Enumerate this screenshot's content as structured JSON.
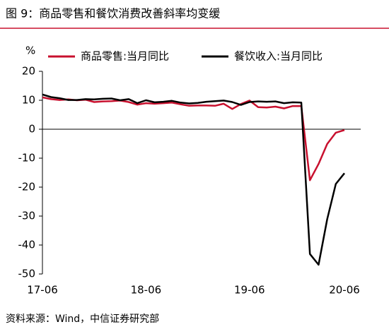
{
  "chart_data": {
    "type": "line",
    "title": "图 9：商品零售和餐饮消费改善斜率均变缓",
    "y_label": "%",
    "source": "资料来源：Wind，中信证券研究部",
    "categories": [
      "17-06",
      null,
      null,
      null,
      null,
      null,
      null,
      null,
      null,
      null,
      null,
      null,
      "18-06",
      null,
      null,
      null,
      null,
      null,
      null,
      null,
      null,
      null,
      null,
      null,
      "19-06",
      null,
      null,
      null,
      null,
      null,
      null,
      null,
      null,
      null,
      null,
      "20-06"
    ],
    "series": [
      {
        "name": "商品零售:当月同比",
        "color": "#c8102e",
        "values": [
          11,
          10.4,
          10.1,
          10.3,
          10,
          10.2,
          9.4,
          9.6,
          9.7,
          9.9,
          9.4,
          8.5,
          9.0,
          8.8,
          9.0,
          9.2,
          8.6,
          8.1,
          8.2,
          8.2,
          8.1,
          8.8,
          7.0,
          8.7,
          9.9,
          7.6,
          7.5,
          7.8,
          7.2,
          8.0,
          8.0,
          -17.6,
          -12,
          -5.1,
          -1.2,
          -0.3
        ]
      },
      {
        "name": "餐饮收入:当月同比",
        "color": "#000000",
        "values": [
          12,
          11.1,
          10.7,
          10.1,
          10.1,
          10.4,
          10.3,
          10.5,
          10.6,
          10.0,
          10.4,
          9.0,
          10.0,
          9.3,
          9.5,
          9.8,
          9.2,
          8.9,
          9.1,
          9.5,
          9.7,
          9.9,
          9.4,
          8.4,
          9.4,
          9.6,
          9.5,
          9.6,
          9.0,
          9.3,
          9.2,
          -43.1,
          -46.8,
          -31.1,
          -18.9,
          -15.2
        ]
      }
    ],
    "ylim": [
      -50,
      20
    ],
    "yticks": [
      20,
      10,
      0,
      -10,
      -20,
      -30,
      -40,
      -50
    ],
    "legend": "top"
  }
}
